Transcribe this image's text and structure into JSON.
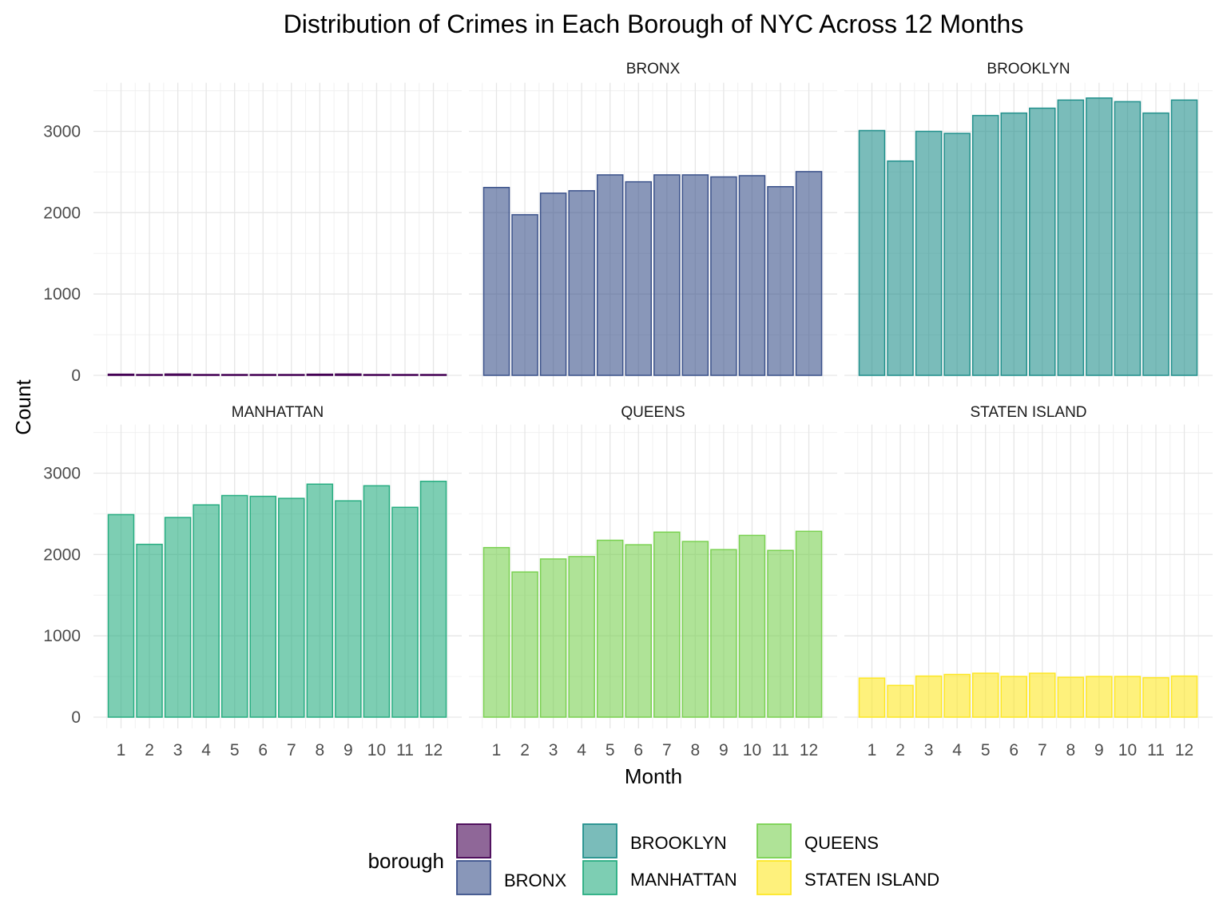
{
  "chart_data": {
    "type": "bar",
    "title": "Distribution of Crimes in Each Borough of NYC Across 12 Months",
    "xlabel": "Month",
    "ylabel": "Count",
    "ylim": [
      0,
      3500
    ],
    "y_ticks": [
      "0",
      "1000",
      "2000",
      "3000"
    ],
    "categories": [
      "1",
      "2",
      "3",
      "4",
      "5",
      "6",
      "7",
      "8",
      "9",
      "10",
      "11",
      "12"
    ],
    "grid": true,
    "legend_position": "bottom",
    "legend_title": "borough",
    "series": [
      {
        "name": "",
        "strip": "",
        "fill": "#440154",
        "values": [
          14,
          8,
          16,
          8,
          6,
          8,
          8,
          14,
          16,
          8,
          8,
          6
        ]
      },
      {
        "name": "BRONX",
        "strip": "BRONX",
        "fill": "#3B528B",
        "values": [
          2310,
          1975,
          2240,
          2270,
          2465,
          2380,
          2465,
          2465,
          2440,
          2455,
          2320,
          2505
        ]
      },
      {
        "name": "BROOKLYN",
        "strip": "BROOKLYN",
        "fill": "#21908C",
        "values": [
          3010,
          2635,
          3000,
          2975,
          3195,
          3225,
          3285,
          3385,
          3410,
          3365,
          3225,
          3385
        ]
      },
      {
        "name": "MANHATTAN",
        "strip": "MANHATTAN",
        "fill": "#27AD81",
        "values": [
          2490,
          2125,
          2455,
          2610,
          2725,
          2715,
          2690,
          2865,
          2660,
          2845,
          2580,
          2900
        ]
      },
      {
        "name": "QUEENS",
        "strip": "QUEENS",
        "fill": "#7AD151",
        "values": [
          2085,
          1785,
          1945,
          1975,
          2175,
          2120,
          2275,
          2160,
          2060,
          2235,
          2050,
          2285
        ]
      },
      {
        "name": "STATEN ISLAND",
        "strip": "STATEN ISLAND",
        "fill": "#FDE725",
        "values": [
          480,
          390,
          505,
          525,
          540,
          500,
          540,
          490,
          500,
          500,
          485,
          505
        ]
      }
    ]
  }
}
